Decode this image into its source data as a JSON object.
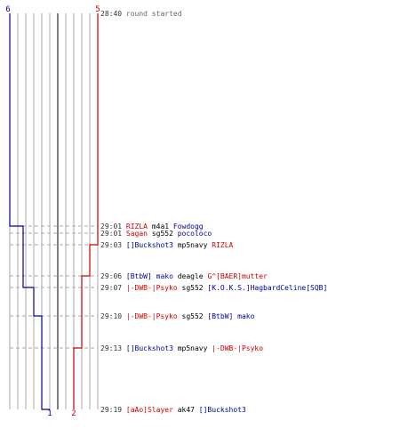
{
  "colors": {
    "blue": "#000099",
    "red": "#cc0000",
    "gray": "#666666",
    "grid": "#aaaaaa",
    "axis": "#555555",
    "dash": "#aaaaaa"
  },
  "teams": {
    "blue": {
      "start": "6",
      "end": "1"
    },
    "red": {
      "start": "5",
      "end": "2"
    }
  },
  "events": [
    {
      "time": "28:40",
      "parts": [
        {
          "text": "round started",
          "color": "gray"
        }
      ]
    },
    {
      "time": "29:01",
      "parts": [
        {
          "text": "RIZLA",
          "color": "red"
        },
        {
          "text": " m4a1 ",
          "color": "black"
        },
        {
          "text": "Fowdogg",
          "color": "blue"
        }
      ]
    },
    {
      "time": "29:01",
      "parts": [
        {
          "text": "Sagan",
          "color": "red"
        },
        {
          "text": " sg552 ",
          "color": "black"
        },
        {
          "text": "pocoloco",
          "color": "blue"
        }
      ]
    },
    {
      "time": "29:03",
      "parts": [
        {
          "text": "[]Buckshot3",
          "color": "blue"
        },
        {
          "text": " mp5navy ",
          "color": "black"
        },
        {
          "text": "RIZLA",
          "color": "red"
        }
      ]
    },
    {
      "time": "29:06",
      "parts": [
        {
          "text": "[BtbW]",
          "color": "blue"
        },
        {
          "text": " mako",
          "color": "blue"
        },
        {
          "text": " deagle ",
          "color": "black"
        },
        {
          "text": "G^[BAER]mutter",
          "color": "red"
        }
      ]
    },
    {
      "time": "29:07",
      "parts": [
        {
          "text": "|-DWB-|Psyko",
          "color": "red"
        },
        {
          "text": " sg552 ",
          "color": "black"
        },
        {
          "text": "[K.O.K.S.]HagbardCeline[SQB]",
          "color": "blue"
        }
      ]
    },
    {
      "time": "29:10",
      "parts": [
        {
          "text": "|-DWB-|Psyko",
          "color": "red"
        },
        {
          "text": " sg552 ",
          "color": "black"
        },
        {
          "text": "[BtbW] mako",
          "color": "blue"
        }
      ]
    },
    {
      "time": "29:13",
      "parts": [
        {
          "text": "[]Buckshot3",
          "color": "blue"
        },
        {
          "text": " mp5navy ",
          "color": "black"
        },
        {
          "text": "|-DWB-|Psyko",
          "color": "red"
        }
      ]
    },
    {
      "time": "29:19",
      "parts": [
        {
          "text": "[aAo]Slayer",
          "color": "red"
        },
        {
          "text": " ak47 ",
          "color": "black"
        },
        {
          "text": "[]Buckshot3",
          "color": "blue"
        }
      ]
    }
  ]
}
